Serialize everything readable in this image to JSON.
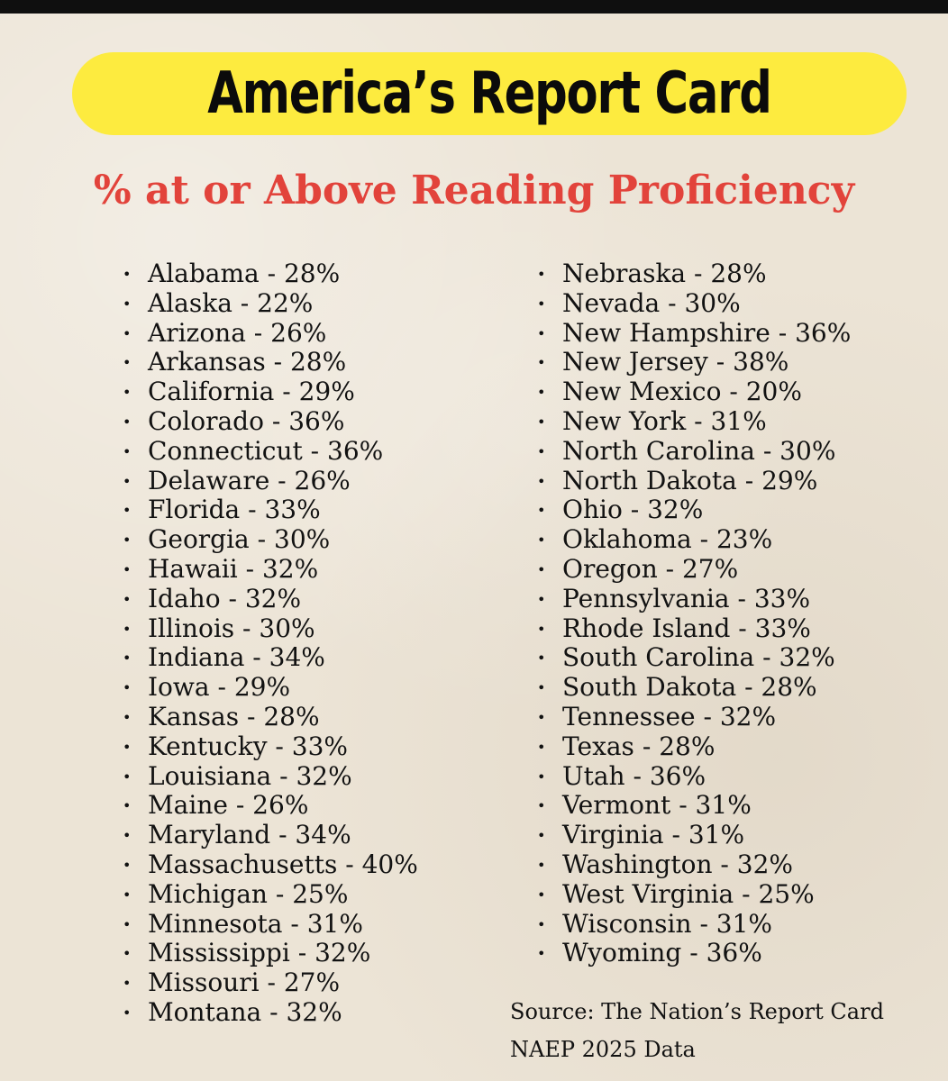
{
  "title": "America’s Report Card",
  "subtitle": "% at or Above Reading Proficiency",
  "bullet_symbol": "•",
  "states_left": [
    {
      "text": "Alabama - 28%"
    },
    {
      "text": "Alaska - 22%"
    },
    {
      "text": "Arizona - 26%"
    },
    {
      "text": "Arkansas - 28%"
    },
    {
      "text": "California - 29%"
    },
    {
      "text": "Colorado - 36%"
    },
    {
      "text": "Connecticut - 36%"
    },
    {
      "text": "Delaware - 26%"
    },
    {
      "text": "Florida - 33%"
    },
    {
      "text": "Georgia - 30%"
    },
    {
      "text": "Hawaii - 32%"
    },
    {
      "text": "Idaho - 32%"
    },
    {
      "text": "Illinois - 30%"
    },
    {
      "text": "Indiana - 34%"
    },
    {
      "text": "Iowa - 29%"
    },
    {
      "text": "Kansas - 28%"
    },
    {
      "text": "Kentucky - 33%"
    },
    {
      "text": "Louisiana - 32%"
    },
    {
      "text": "Maine - 26%"
    },
    {
      "text": "Maryland - 34%"
    },
    {
      "text": "Massachusetts - 40%"
    },
    {
      "text": "Michigan - 25%"
    },
    {
      "text": "Minnesota - 31%"
    },
    {
      "text": "Mississippi - 32%"
    },
    {
      "text": "Missouri - 27%"
    },
    {
      "text": "Montana - 32%"
    }
  ],
  "states_right": [
    {
      "text": "Nebraska - 28%"
    },
    {
      "text": "Nevada - 30%"
    },
    {
      "text": "New Hampshire -  36%"
    },
    {
      "text": "New Jersey - 38%"
    },
    {
      "text": "New Mexico - 20%"
    },
    {
      "text": "New York - 31%"
    },
    {
      "text": "North Carolina - 30%"
    },
    {
      "text": "North Dakota - 29%"
    },
    {
      "text": "Ohio - 32%"
    },
    {
      "text": "Oklahoma - 23%"
    },
    {
      "text": "Oregon - 27%"
    },
    {
      "text": "Pennsylvania - 33%"
    },
    {
      "text": "Rhode Island - 33%"
    },
    {
      "text": "South Carolina - 32%"
    },
    {
      "text": "South Dakota - 28%"
    },
    {
      "text": "Tennessee - 32%"
    },
    {
      "text": "Texas - 28%"
    },
    {
      "text": "Utah - 36%"
    },
    {
      "text": "Vermont - 31%"
    },
    {
      "text": "Virginia - 31%"
    },
    {
      "text": "Washington - 32%"
    },
    {
      "text": "West Virginia - 25%"
    },
    {
      "text": "Wisconsin - 31%"
    },
    {
      "text": "Wyoming - 36%"
    }
  ],
  "source": {
    "line1": "Source: The Nation’s Report Card",
    "line2": "NAEP 2025 Data"
  },
  "colors": {
    "banner": "#fdeb3f",
    "subtitle": "#e2433b",
    "background": "#ece4d6",
    "text": "#121212"
  }
}
